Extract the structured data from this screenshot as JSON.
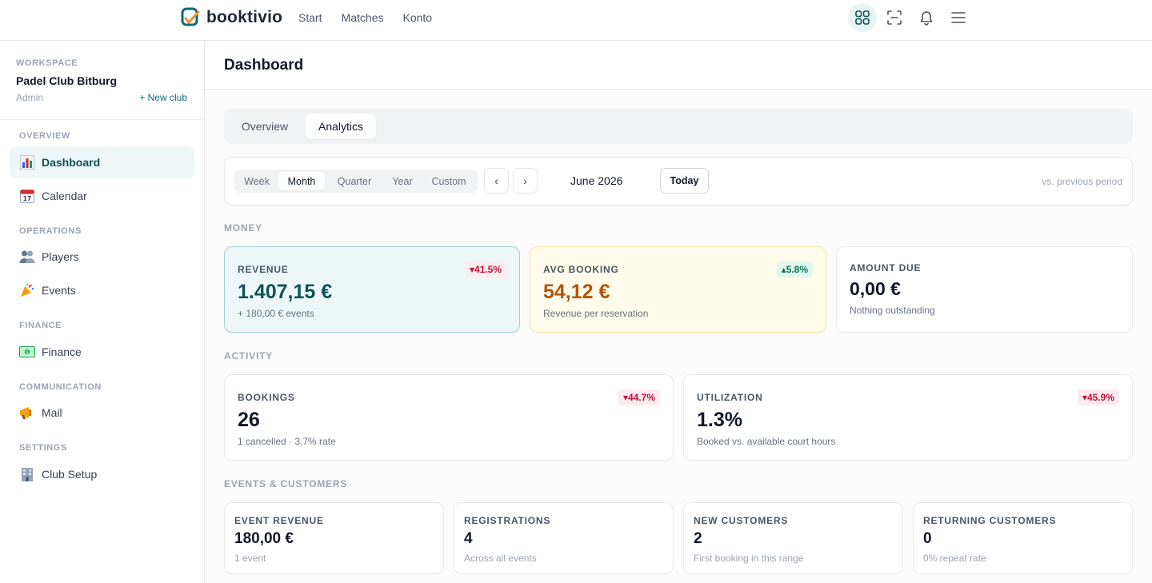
{
  "brand": {
    "name": "booktivio"
  },
  "topnav": [
    "Start",
    "Matches",
    "Konto"
  ],
  "top_icons": [
    "apps-grid-icon",
    "scan-icon",
    "bell-icon",
    "menu-icon"
  ],
  "workspace": {
    "label": "WORKSPACE",
    "name": "Padel Club Bitburg",
    "role": "Admin",
    "new_club": "+ New club"
  },
  "sidebar": {
    "sections": [
      {
        "label": "OVERVIEW",
        "items": [
          {
            "label": "Dashboard",
            "icon": "bar-chart-icon",
            "active": true
          },
          {
            "label": "Calendar",
            "icon": "calendar-icon"
          }
        ]
      },
      {
        "label": "OPERATIONS",
        "items": [
          {
            "label": "Players",
            "icon": "players-icon"
          },
          {
            "label": "Events",
            "icon": "party-popper-icon"
          }
        ]
      },
      {
        "label": "FINANCE",
        "items": [
          {
            "label": "Finance",
            "icon": "money-icon"
          }
        ]
      },
      {
        "label": "COMMUNICATION",
        "items": [
          {
            "label": "Mail",
            "icon": "megaphone-icon"
          }
        ]
      },
      {
        "label": "SETTINGS",
        "items": [
          {
            "label": "Club Setup",
            "icon": "building-icon"
          }
        ]
      }
    ]
  },
  "page": {
    "title": "Dashboard"
  },
  "tabs": [
    {
      "label": "Overview",
      "active": false
    },
    {
      "label": "Analytics",
      "active": true
    }
  ],
  "filters": {
    "ranges": [
      "Week",
      "Month",
      "Quarter",
      "Year",
      "Custom"
    ],
    "active_range": "Month",
    "prev": "‹",
    "next": "›",
    "period": "June 2026",
    "today": "Today",
    "comparison": "vs. previous period"
  },
  "groups": {
    "money": "MONEY",
    "activity": "ACTIVITY",
    "events": "EVENTS & CUSTOMERS"
  },
  "money": {
    "revenue": {
      "label": "REVENUE",
      "value": "1.407,15 €",
      "sub": "+ 180,00 € events",
      "delta": "▾41.5%",
      "trend": "down"
    },
    "avg_booking": {
      "label": "AVG BOOKING",
      "value": "54,12 €",
      "sub": "Revenue per reservation",
      "delta": "▴5.8%",
      "trend": "up"
    },
    "amount_due": {
      "label": "AMOUNT DUE",
      "value": "0,00 €",
      "sub": "Nothing outstanding"
    }
  },
  "activity": {
    "bookings": {
      "label": "BOOKINGS",
      "value": "26",
      "sub": "1 cancelled · 3.7% rate",
      "delta": "▾44.7%",
      "trend": "down"
    },
    "utilization": {
      "label": "UTILIZATION",
      "value": "1.3%",
      "sub": "Booked vs. available court hours",
      "delta": "▾45.9%",
      "trend": "down"
    }
  },
  "events_customers": {
    "event_revenue": {
      "label": "EVENT REVENUE",
      "value": "180,00 €",
      "sub": "1 event"
    },
    "registrations": {
      "label": "REGISTRATIONS",
      "value": "4",
      "sub": "Across all events"
    },
    "new_customers": {
      "label": "NEW CUSTOMERS",
      "value": "2",
      "sub": "First booking in this range"
    },
    "returning_customers": {
      "label": "RETURNING CUSTOMERS",
      "value": "0",
      "sub": "0% repeat rate"
    }
  },
  "colors": {
    "accent": "#0f6b70",
    "brand_orange": "#f28c28",
    "down": "#be123c",
    "up": "#047857",
    "amber_value": "#b45309"
  }
}
